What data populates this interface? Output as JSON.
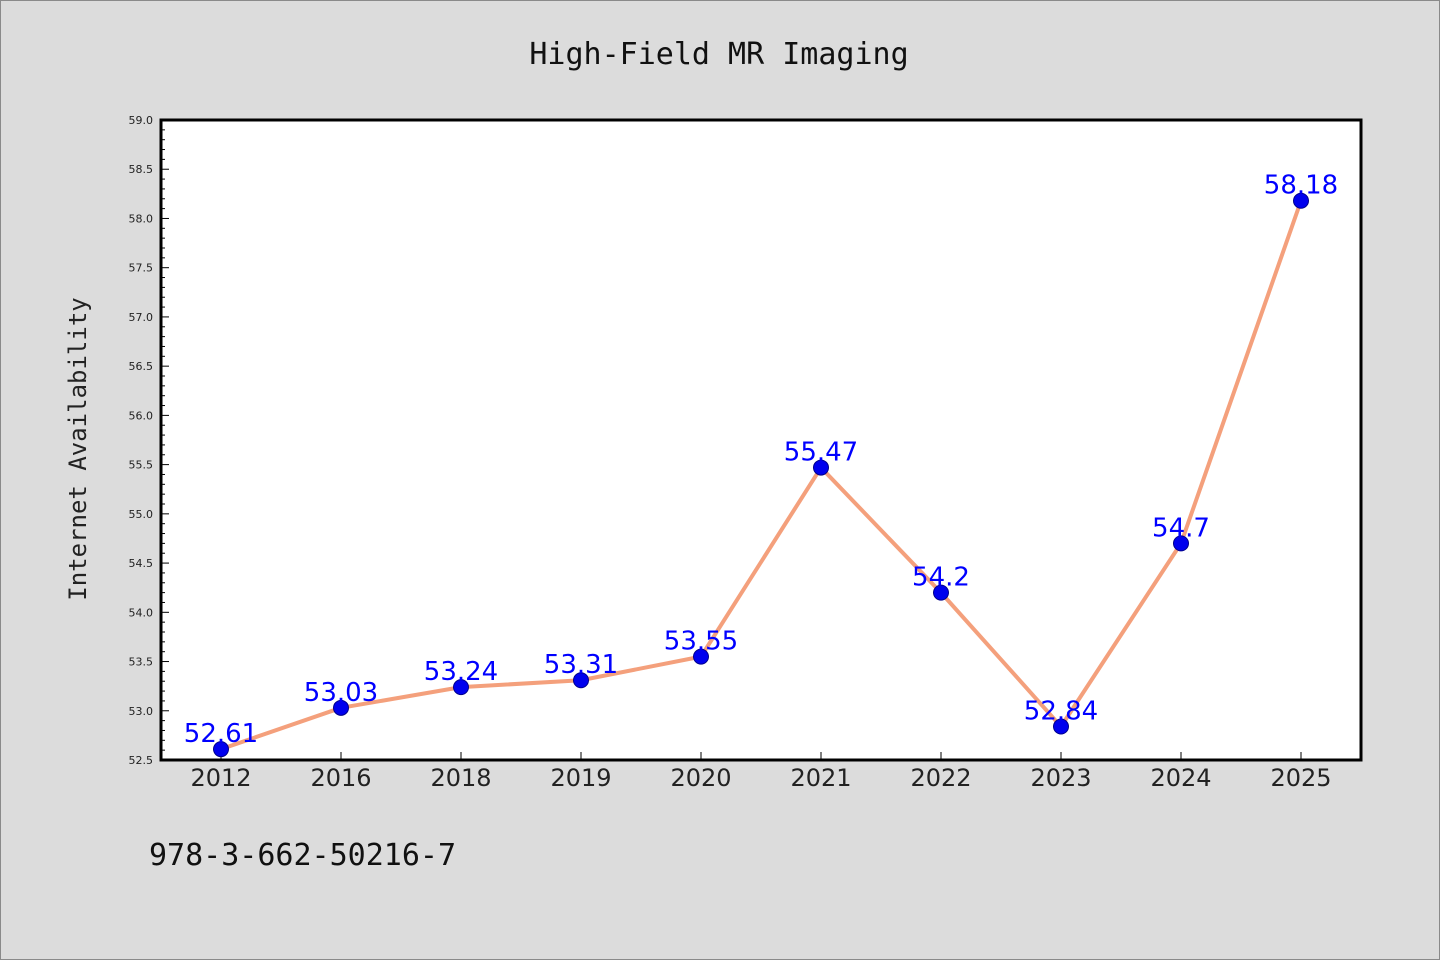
{
  "chart_data": {
    "type": "line",
    "title": "High-Field MR Imaging",
    "xlabel": "",
    "ylabel": "Internet Availability",
    "categories": [
      "2012",
      "2016",
      "2018",
      "2019",
      "2020",
      "2021",
      "2022",
      "2023",
      "2024",
      "2025"
    ],
    "values": [
      52.61,
      53.03,
      53.24,
      53.31,
      53.55,
      55.47,
      54.2,
      52.84,
      54.7,
      58.18
    ],
    "data_labels": [
      "52.61",
      "53.03",
      "53.24",
      "53.31",
      "53.55",
      "55.47",
      "54.2",
      "52.84",
      "54.7",
      "58.18"
    ],
    "ylim": [
      52.5,
      59.0
    ],
    "y_major_step": 0.5,
    "y_ticks": [
      "52.5",
      "53.0",
      "53.5",
      "54.0",
      "54.5",
      "55.0",
      "55.5",
      "56.0",
      "56.5",
      "57.0",
      "57.5",
      "58.0",
      "58.5",
      "59.0"
    ],
    "grid": false,
    "legend": "none",
    "colors": {
      "line": "#f4a07c",
      "marker": "#0000ee",
      "marker_edge": "#00008b",
      "label": "#0000ff",
      "plot_bg": "#ffffff",
      "figure_bg": "#dcdcdc"
    }
  },
  "footer": {
    "isbn": "978-3-662-50216-7"
  }
}
